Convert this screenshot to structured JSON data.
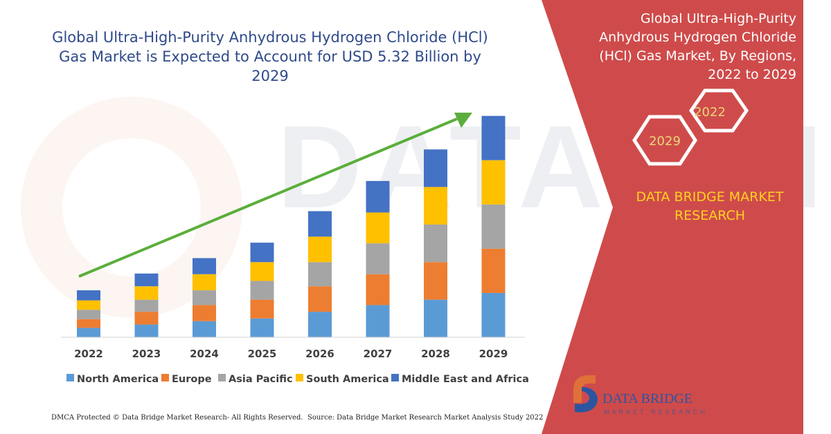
{
  "header": {
    "title_line1": "Global Ultra-High-Purity Anhydrous Hydrogen Chloride (HCl)",
    "title_line2": "Gas Market is Expected to Account for USD 5.32 Billion by 2029"
  },
  "side_panel": {
    "title_lines": [
      "Global Ultra-High-Purity",
      "Anhydrous Hydrogen Chloride",
      "(HCl) Gas Market, By Regions,",
      "2022 to 2029"
    ],
    "hex_labels": [
      "2022",
      "2029"
    ],
    "brand_lines": [
      "DATA BRIDGE MARKET",
      "RESEARCH"
    ],
    "logo_text": "DATA BRIDGE",
    "logo_subtext": "MARKET RESEARCH"
  },
  "footer": {
    "left": "DMCA Protected © Data Bridge Market Research- All Rights Reserved.",
    "right": "Source: Data Bridge Market Research Market Analysis Study 2022"
  },
  "colors": {
    "panel": "#cf4b4b",
    "title_text": "#2f4a8a",
    "brand_yellow": "#ffd21f",
    "arrow": "#5aae3c",
    "hex_text": "#e8d67a"
  },
  "chart_data": {
    "type": "bar",
    "stacked": true,
    "categories": [
      "2022",
      "2023",
      "2024",
      "2025",
      "2026",
      "2027",
      "2028",
      "2029"
    ],
    "series": [
      {
        "name": "North America",
        "color": "#5b9bd5",
        "values": [
          14,
          19,
          24,
          28,
          38,
          48,
          56,
          66
        ]
      },
      {
        "name": "Europe",
        "color": "#ed7d31",
        "values": [
          13,
          19,
          24,
          28,
          38,
          46,
          56,
          66
        ]
      },
      {
        "name": "Asia Pacific",
        "color": "#a5a5a5",
        "values": [
          14,
          18,
          22,
          28,
          36,
          46,
          56,
          66
        ]
      },
      {
        "name": "South America",
        "color": "#ffc000",
        "values": [
          14,
          20,
          24,
          28,
          38,
          46,
          56,
          66
        ]
      },
      {
        "name": "Middle East and Africa",
        "color": "#4472c4",
        "values": [
          15,
          19,
          24,
          29,
          38,
          47,
          56,
          66
        ]
      }
    ],
    "ylim": [
      0,
      340
    ],
    "legend": "bottom",
    "grid": false,
    "trend_arrow": true
  }
}
